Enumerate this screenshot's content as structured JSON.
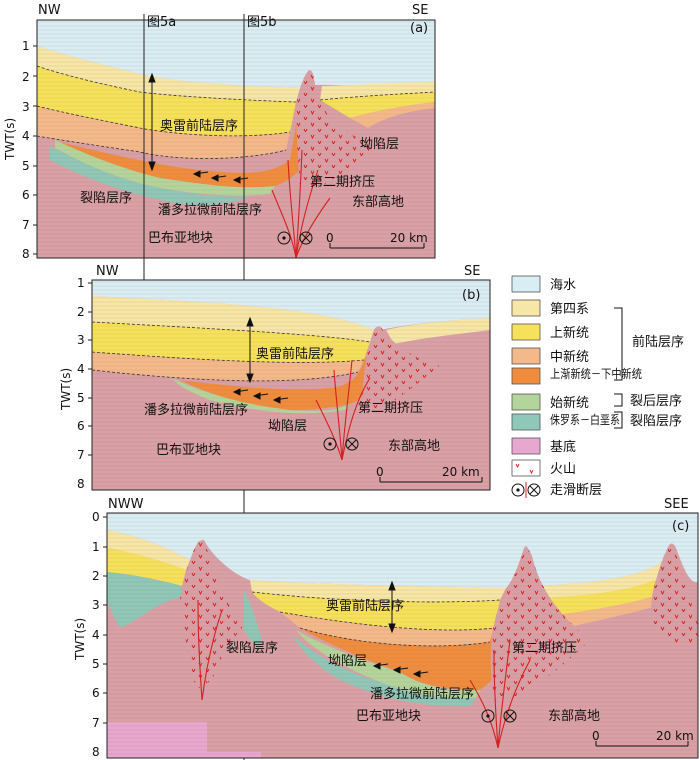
{
  "axis_label": "TWT(s)",
  "panels": [
    {
      "id": "a",
      "tag": "(a)",
      "left_dir": "NW",
      "right_dir": "SE",
      "ticks": [
        "1",
        "2",
        "3",
        "4",
        "5",
        "6",
        "7",
        "8"
      ],
      "section_marks": [
        "图5a",
        "图5b"
      ],
      "labels": {
        "orogen": "奥雷前陆层序",
        "depression": "坳陷层",
        "second_phase": "第二期挤压",
        "east_high": "东部高地",
        "rift": "裂陷层序",
        "pando": "潘多拉微前陆层序",
        "papua": "巴布亚地块"
      },
      "scale": {
        "zero": "0",
        "end": "20 km"
      }
    },
    {
      "id": "b",
      "tag": "(b)",
      "left_dir": "NW",
      "right_dir": "SE",
      "ticks": [
        "1",
        "2",
        "3",
        "4",
        "5",
        "6",
        "7",
        "8"
      ],
      "labels": {
        "orogen": "奥雷前陆层序",
        "pando": "潘多拉微前陆层序",
        "second_phase": "第二期挤压",
        "depression": "坳陷层",
        "papua": "巴布亚地块",
        "east_high": "东部高地"
      },
      "scale": {
        "zero": "0",
        "end": "20 km"
      }
    },
    {
      "id": "c",
      "tag": "(c)",
      "left_dir": "NWW",
      "right_dir": "SEE",
      "ticks": [
        "0",
        "1",
        "2",
        "3",
        "4",
        "5",
        "6",
        "7",
        "8"
      ],
      "labels": {
        "orogen": "奥雷前陆层序",
        "rift": "裂陷层序",
        "depression": "坳陷层",
        "second_phase": "第二期挤压",
        "pando": "潘多拉微前陆层序",
        "papua": "巴布亚地块",
        "east_high": "东部高地"
      },
      "scale": {
        "zero": "0",
        "end": "20 km"
      }
    }
  ],
  "legend": {
    "items": [
      {
        "label": "海水",
        "color": "#d8eef4"
      },
      {
        "label": "第四系",
        "color": "#f7e7a6"
      },
      {
        "label": "上新统",
        "color": "#f6e25a"
      },
      {
        "label": "中新统",
        "color": "#f4b98a"
      },
      {
        "label": "上渐新统－下中新统",
        "color": "#ef8c3e"
      },
      {
        "label": "始新统",
        "color": "#b3d59b"
      },
      {
        "label": "侏罗系－白垩系",
        "color": "#8fc7b8"
      },
      {
        "label": "基底",
        "color": "#e8a7cf"
      },
      {
        "label": "火山",
        "color": "#ffffff"
      },
      {
        "label": "走滑断层",
        "color": "#ffffff"
      }
    ],
    "groups": {
      "foreland": "前陆层序",
      "post_rift": "裂后层序",
      "rift": "裂陷层序"
    }
  },
  "colors": {
    "basement": "#d9a0a6",
    "sea": "#d8eef4",
    "fault": "#d42020"
  }
}
